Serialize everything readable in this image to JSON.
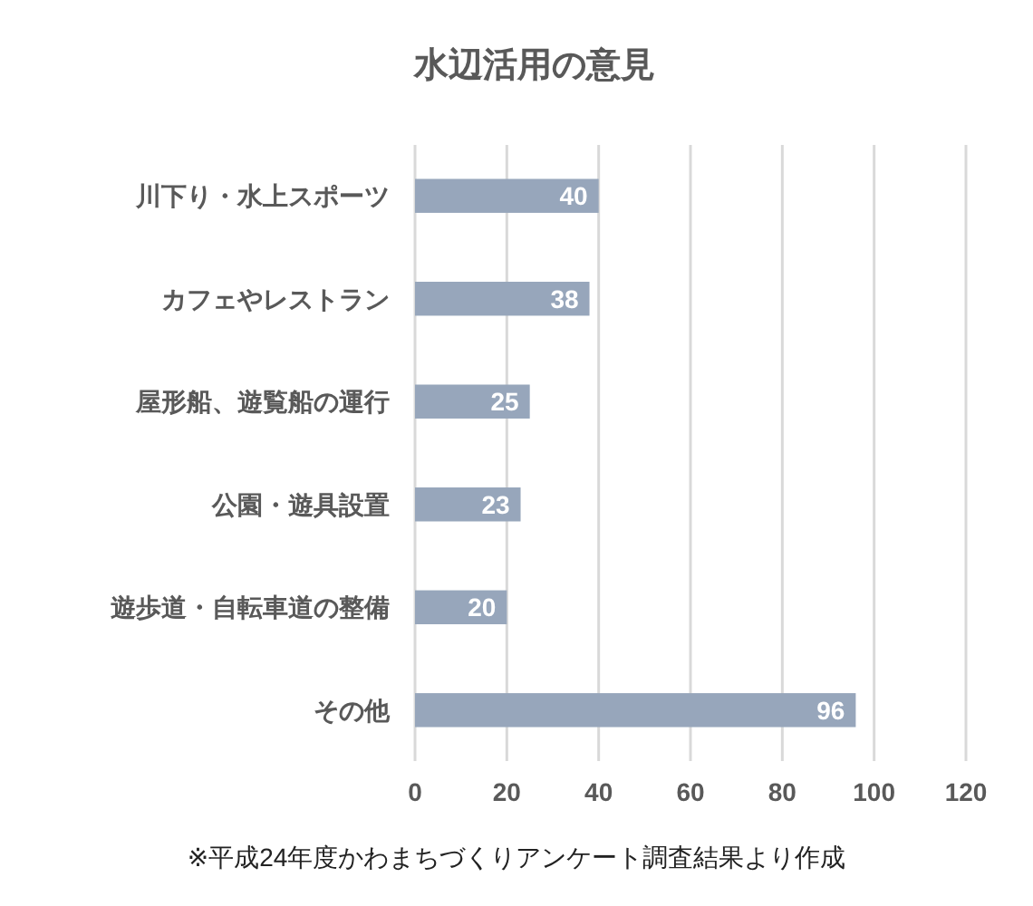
{
  "chart_data": {
    "type": "bar",
    "orientation": "horizontal",
    "title": "水辺活用の意見",
    "categories": [
      "川下り・水上スポーツ",
      "カフェやレストラン",
      "屋形船、遊覧船の運行",
      "公園・遊具設置",
      "遊歩道・自転車道の整備",
      "その他"
    ],
    "values": [
      40,
      38,
      25,
      23,
      20,
      96
    ],
    "color": "#97a6bb",
    "xlim": [
      0,
      120
    ],
    "xticks": [
      0,
      20,
      40,
      60,
      80,
      100,
      120
    ],
    "grid": "x",
    "data_labels": true,
    "annotations": [
      "※平成24年度かわまちづくりアンケート調査結果より作成"
    ]
  }
}
